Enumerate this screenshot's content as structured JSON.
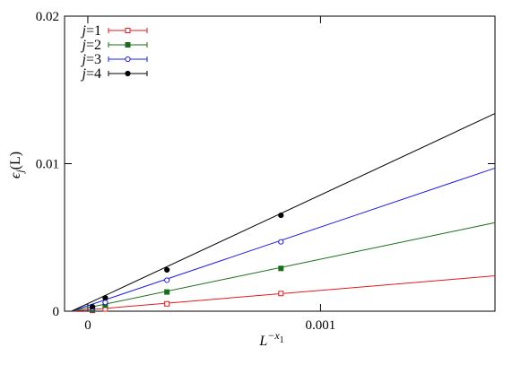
{
  "chart_data": {
    "type": "line",
    "xlabel_base": "L",
    "xlabel_exp_base": "−x",
    "xlabel_exp_sub": "1",
    "ylabel_main": "ϵ",
    "ylabel_sub": "j",
    "ylabel_arg": "(L)",
    "xlim": [
      -0.0001,
      0.00175
    ],
    "ylim": [
      0,
      0.02
    ],
    "xticks": [
      0,
      0.001
    ],
    "xtick_labels": [
      "0",
      "0.001"
    ],
    "yticks": [
      0,
      0.01,
      0.02
    ],
    "ytick_labels": [
      "0",
      "0.01",
      "0.02"
    ],
    "grid": false,
    "legend_position": "top-left",
    "series": [
      {
        "name": "j=1",
        "name_var": "j",
        "name_rest": "=1",
        "color": "#e31a1c",
        "marker": "open-square",
        "points": [
          [
            2e-05,
            5e-05
          ],
          [
            7.5e-05,
            0.00015
          ],
          [
            0.00034,
            0.0005
          ],
          [
            0.00083,
            0.0012
          ]
        ],
        "fit": [
          [
            -7e-05,
            0
          ],
          [
            0.00175,
            0.0024
          ]
        ]
      },
      {
        "name": "j=2",
        "name_var": "j",
        "name_rest": "=2",
        "color": "#1a6e1a",
        "marker": "filled-square",
        "points": [
          [
            2e-05,
            0.0001
          ],
          [
            7.5e-05,
            0.0004
          ],
          [
            0.00034,
            0.0013
          ],
          [
            0.00083,
            0.0029
          ]
        ],
        "fit": [
          [
            -7e-05,
            0
          ],
          [
            0.00175,
            0.006
          ]
        ]
      },
      {
        "name": "j=3",
        "name_var": "j",
        "name_rest": "=3",
        "color": "#1f1fe6",
        "marker": "open-circle",
        "points": [
          [
            2e-05,
            0.0002
          ],
          [
            7.5e-05,
            0.0006
          ],
          [
            0.00034,
            0.0021
          ],
          [
            0.00083,
            0.0047
          ]
        ],
        "fit": [
          [
            -7e-05,
            0
          ],
          [
            0.00175,
            0.0097
          ]
        ]
      },
      {
        "name": "j=4",
        "name_var": "j",
        "name_rest": "=4",
        "color": "#000000",
        "marker": "filled-circle",
        "points": [
          [
            2e-05,
            0.0003
          ],
          [
            7.5e-05,
            0.0009
          ],
          [
            0.00034,
            0.0028
          ],
          [
            0.00083,
            0.0065
          ]
        ],
        "fit": [
          [
            -7e-05,
            0
          ],
          [
            0.00175,
            0.0134
          ]
        ]
      }
    ]
  }
}
